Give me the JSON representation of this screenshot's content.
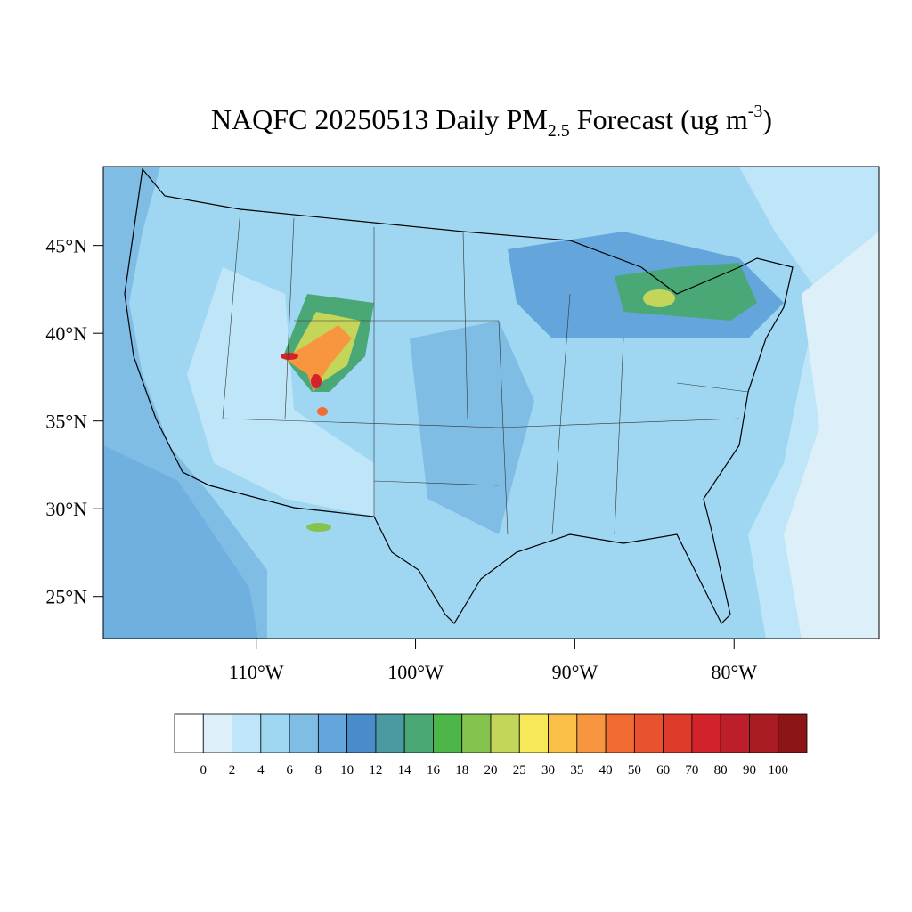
{
  "map": {
    "title": {
      "text": "NAQFC 20250513 Daily PM",
      "subscript": "2.5",
      "middle": " Forecast (ug m",
      "superscript": "-3",
      "end": ")"
    },
    "lonlim": [
      -119.6,
      -70.9
    ],
    "latlim": [
      22.6,
      49.5
    ],
    "lon_ticks": [
      {
        "value": -110,
        "label": "110°W"
      },
      {
        "value": -100,
        "label": "100°W"
      },
      {
        "value": -90,
        "label": "90°W"
      },
      {
        "value": -80,
        "label": "80°W"
      }
    ],
    "lat_ticks": [
      {
        "value": 45,
        "label": "45°N"
      },
      {
        "value": 40,
        "label": "40°N"
      },
      {
        "value": 35,
        "label": "35°N"
      },
      {
        "value": 30,
        "label": "30°N"
      },
      {
        "value": 25,
        "label": "25°N"
      }
    ],
    "colorbar": {
      "levels": [
        0,
        2,
        4,
        6,
        8,
        10,
        12,
        14,
        16,
        18,
        20,
        25,
        30,
        35,
        40,
        50,
        60,
        70,
        80,
        90,
        100
      ],
      "colors": [
        "#ffffff",
        "#ddf0fa",
        "#bfe6f8",
        "#9fd7f3",
        "#80bde5",
        "#64a6dc",
        "#4a8cc9",
        "#4a9aa0",
        "#4aa877",
        "#4cb748",
        "#84c44e",
        "#c3d659",
        "#f7e85a",
        "#f9c048",
        "#f7963f",
        "#f26b32",
        "#e85230",
        "#dd3b2a",
        "#d2232d",
        "#bd1f2a",
        "#a81b22",
        "#8c1518"
      ]
    }
  }
}
